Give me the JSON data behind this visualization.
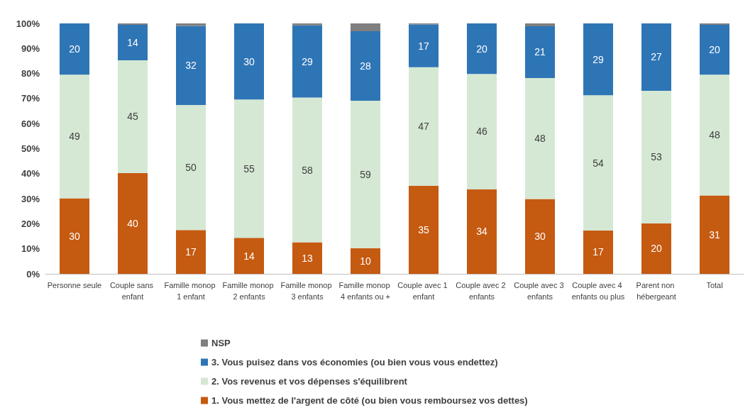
{
  "chart_data": {
    "type": "bar",
    "stacked": true,
    "categories": [
      "Personne seule",
      "Couple sans enfant",
      "Famille monop 1 enfant",
      "Famille monop 2 enfants",
      "Famille monop 3 enfants",
      "Famille monop 4 enfants ou +",
      "Couple avec 1 enfant",
      "Couple avec 2 enfants",
      "Couple avec 3 enfants",
      "Couple avec 4 enfants ou plus",
      "Parent non hébergeant",
      "Total"
    ],
    "series": [
      {
        "name": "1. Vous mettez de l'argent de côté (ou bien vous remboursez vos dettes)",
        "color": "#c55a11",
        "values": [
          30.2,
          40.2,
          17.5,
          14.4,
          12.6,
          10.3,
          35.2,
          33.8,
          29.9,
          17.3,
          20.2,
          31.3
        ],
        "value_labels": [
          "30",
          "40",
          "17",
          "14",
          "13",
          "10",
          "35",
          "34",
          "30",
          "17",
          "20",
          "31"
        ]
      },
      {
        "name": "2. Vos revenus et vos dépenses s'équilibrent",
        "color": "#d5e8d4",
        "values": [
          49.3,
          45.1,
          49.9,
          55.2,
          57.8,
          58.8,
          47.3,
          46.0,
          48.3,
          54.0,
          52.9,
          48.2
        ],
        "value_labels": [
          "49",
          "45",
          "50",
          "55",
          "58",
          "59",
          "47",
          "46",
          "48",
          "54",
          "53",
          "48"
        ]
      },
      {
        "name": "3. Vous puisez dans vos économies (ou bien vous vous endettez)",
        "color": "#2e75b6",
        "values": [
          20.5,
          14.1,
          31.6,
          30.4,
          28.8,
          27.8,
          17.1,
          20.2,
          20.7,
          28.7,
          26.9,
          19.9
        ],
        "value_labels": [
          "20",
          "14",
          "32",
          "30",
          "29",
          "28",
          "17",
          "20",
          "21",
          "29",
          "27",
          "20"
        ]
      },
      {
        "name": "NSP",
        "color": "#7f7f7f",
        "values": [
          0,
          0.6,
          1.0,
          0,
          0.8,
          3.1,
          0.4,
          0,
          1.1,
          0,
          0,
          0.6
        ]
      }
    ],
    "ylim": [
      0,
      100
    ],
    "yticks": [
      {
        "value": 0,
        "label": "0%"
      },
      {
        "value": 10,
        "label": "10%"
      },
      {
        "value": 20,
        "label": "20%"
      },
      {
        "value": 30,
        "label": "30%"
      },
      {
        "value": 40,
        "label": "40%"
      },
      {
        "value": 50,
        "label": "50%"
      },
      {
        "value": 60,
        "label": "60%"
      },
      {
        "value": 70,
        "label": "70%"
      },
      {
        "value": 80,
        "label": "80%"
      },
      {
        "value": 90,
        "label": "90%"
      },
      {
        "value": 100,
        "label": "100%"
      }
    ],
    "grid": false,
    "legend": "bottom"
  }
}
